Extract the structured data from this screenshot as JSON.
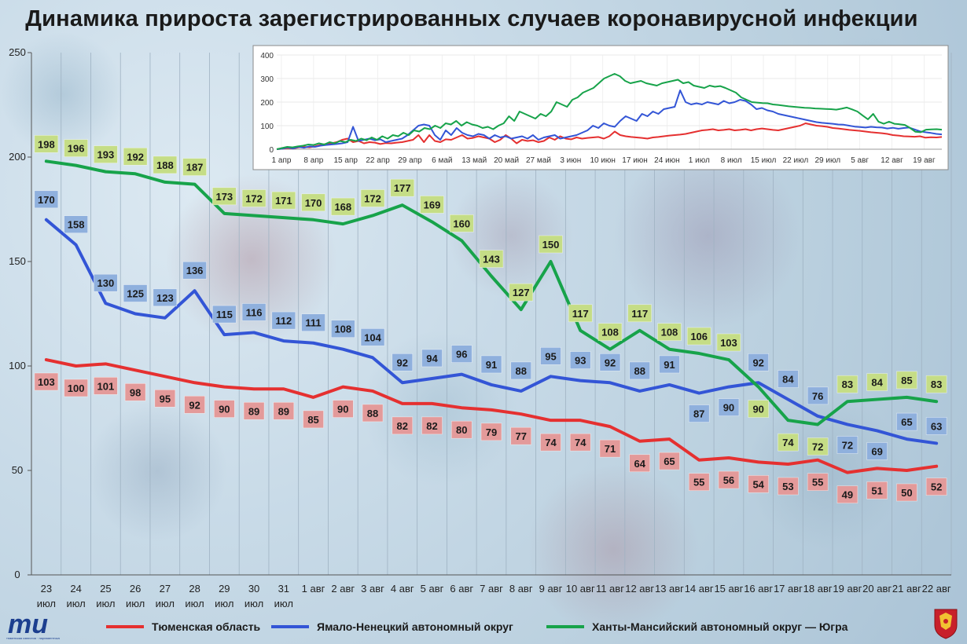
{
  "title": "Динамика прироста зарегистрированных случаев коронавирусной инфекции",
  "colors": {
    "tyumen": "#e53030",
    "yamal": "#3355d6",
    "hmao": "#17a34a"
  },
  "chart_data": [
    {
      "type": "line",
      "title": "Динамика прироста зарегистрированных случаев коронавирусной инфекции",
      "categories": [
        [
          "23",
          "июл"
        ],
        [
          "24",
          "июл"
        ],
        [
          "25",
          "июл"
        ],
        [
          "26",
          "июл"
        ],
        [
          "27",
          "июл"
        ],
        [
          "28",
          "июл"
        ],
        [
          "29",
          "июл"
        ],
        [
          "30",
          "июл"
        ],
        [
          "31",
          "июл"
        ],
        [
          "1 авг",
          ""
        ],
        [
          "2 авг",
          ""
        ],
        [
          "3 авг",
          ""
        ],
        [
          "4 авг",
          ""
        ],
        [
          "5 авг",
          ""
        ],
        [
          "6 авг",
          ""
        ],
        [
          "7 авг",
          ""
        ],
        [
          "8 авг",
          ""
        ],
        [
          "9 авг",
          ""
        ],
        [
          "10 авг",
          ""
        ],
        [
          "11 авг",
          ""
        ],
        [
          "12 авг",
          ""
        ],
        [
          "13 авг",
          ""
        ],
        [
          "14 авг",
          ""
        ],
        [
          "15 авг",
          ""
        ],
        [
          "16 авг",
          ""
        ],
        [
          "17 авг",
          ""
        ],
        [
          "18 авг",
          ""
        ],
        [
          "19 авг",
          ""
        ],
        [
          "20 авг",
          ""
        ],
        [
          "21 авг",
          ""
        ],
        [
          "22 авг",
          ""
        ]
      ],
      "yticks": [
        0,
        50,
        100,
        150,
        200,
        250
      ],
      "ylim": [
        0,
        250
      ],
      "series": [
        {
          "name": "Тюменская область",
          "key": "tyumen",
          "values": [
            103,
            100,
            101,
            98,
            95,
            92,
            90,
            89,
            89,
            85,
            90,
            88,
            82,
            82,
            80,
            79,
            77,
            74,
            74,
            71,
            64,
            65,
            55,
            56,
            54,
            53,
            55,
            49,
            51,
            50,
            52
          ]
        },
        {
          "name": "Ямало-Ненецкий автономный округ",
          "key": "yamal",
          "values": [
            170,
            158,
            130,
            125,
            123,
            136,
            115,
            116,
            112,
            111,
            108,
            104,
            92,
            94,
            96,
            91,
            88,
            95,
            93,
            92,
            88,
            91,
            87,
            90,
            92,
            84,
            76,
            72,
            69,
            65,
            63
          ]
        },
        {
          "name": "Ханты-Мансийский автономный округ — Югра",
          "key": "hmao",
          "values": [
            198,
            196,
            193,
            192,
            188,
            187,
            173,
            172,
            171,
            170,
            168,
            172,
            177,
            169,
            160,
            143,
            127,
            150,
            117,
            108,
            117,
            108,
            106,
            103,
            90,
            74,
            72,
            83,
            84,
            85,
            83
          ]
        }
      ]
    },
    {
      "type": "line",
      "xticks": [
        "1 апр",
        "8 апр",
        "15 апр",
        "22 апр",
        "29 апр",
        "6 май",
        "13 май",
        "20 май",
        "27 май",
        "3 июн",
        "10 июн",
        "17 июн",
        "24 июн",
        "1 июл",
        "8 июл",
        "15 июл",
        "22 июл",
        "29 июл",
        "5 авг",
        "12 авг",
        "19 авг"
      ],
      "yticks": [
        0,
        100,
        200,
        300,
        400
      ],
      "ylim": [
        0,
        400
      ],
      "series": [
        {
          "key": "tyumen",
          "values": [
            0,
            2,
            5,
            3,
            8,
            10,
            8,
            12,
            18,
            22,
            25,
            30,
            40,
            45,
            30,
            35,
            25,
            30,
            28,
            22,
            26,
            25,
            28,
            30,
            35,
            40,
            60,
            30,
            60,
            35,
            30,
            42,
            40,
            50,
            60,
            45,
            48,
            55,
            50,
            45,
            30,
            40,
            60,
            45,
            25,
            40,
            35,
            38,
            30,
            35,
            50,
            40,
            55,
            45,
            42,
            50,
            45,
            48,
            50,
            52,
            45,
            55,
            75,
            60,
            55,
            52,
            50,
            48,
            45,
            50,
            52,
            55,
            58,
            60,
            62,
            65,
            70,
            75,
            80,
            82,
            85,
            80,
            82,
            85,
            80,
            82,
            85,
            80,
            85,
            88,
            85,
            82,
            80,
            85,
            90,
            95,
            100,
            110,
            105,
            100,
            98,
            95,
            90,
            88,
            85,
            82,
            80,
            78,
            75,
            72,
            70,
            68,
            65,
            60,
            58,
            55,
            54,
            53,
            55,
            49,
            51,
            50,
            52
          ]
        },
        {
          "key": "yamal",
          "values": [
            0,
            2,
            8,
            3,
            10,
            6,
            12,
            10,
            15,
            18,
            20,
            22,
            25,
            30,
            95,
            35,
            40,
            45,
            38,
            42,
            30,
            35,
            40,
            45,
            60,
            80,
            100,
            105,
            100,
            60,
            40,
            80,
            60,
            90,
            70,
            60,
            55,
            65,
            60,
            45,
            60,
            50,
            55,
            45,
            50,
            55,
            45,
            60,
            40,
            50,
            55,
            60,
            45,
            50,
            55,
            60,
            70,
            80,
            100,
            90,
            110,
            100,
            95,
            120,
            140,
            130,
            120,
            150,
            140,
            160,
            150,
            170,
            175,
            180,
            250,
            200,
            190,
            195,
            190,
            200,
            195,
            190,
            205,
            195,
            200,
            210,
            205,
            190,
            170,
            175,
            165,
            160,
            150,
            145,
            140,
            135,
            130,
            125,
            120,
            115,
            112,
            110,
            108,
            105,
            104,
            100,
            96,
            94,
            92,
            95,
            93,
            92,
            88,
            91,
            87,
            90,
            92,
            84,
            76,
            72,
            69,
            65,
            63
          ]
        },
        {
          "key": "hmao",
          "values": [
            0,
            5,
            10,
            8,
            12,
            15,
            20,
            18,
            25,
            20,
            30,
            25,
            35,
            30,
            40,
            35,
            45,
            38,
            50,
            40,
            55,
            45,
            60,
            55,
            70,
            60,
            80,
            75,
            90,
            85,
            100,
            90,
            110,
            105,
            120,
            100,
            115,
            105,
            100,
            90,
            95,
            85,
            100,
            110,
            140,
            120,
            160,
            150,
            140,
            130,
            150,
            140,
            160,
            200,
            190,
            180,
            210,
            220,
            240,
            250,
            260,
            280,
            300,
            310,
            320,
            310,
            290,
            280,
            285,
            290,
            280,
            275,
            270,
            280,
            285,
            290,
            295,
            280,
            285,
            270,
            265,
            260,
            270,
            265,
            268,
            260,
            250,
            240,
            220,
            210,
            200,
            198,
            196,
            195,
            190,
            188,
            185,
            182,
            180,
            178,
            176,
            175,
            173,
            172,
            171,
            170,
            168,
            172,
            177,
            169,
            160,
            143,
            127,
            150,
            117,
            108,
            117,
            108,
            106,
            103,
            90,
            74,
            72,
            83,
            84,
            85,
            83
          ]
        }
      ]
    }
  ],
  "legend": [
    {
      "label": "Тюменская область",
      "color": "#e53030"
    },
    {
      "label": "Ямало-Ненецкий автономный округ",
      "color": "#3355d6"
    },
    {
      "label": "Ханты-Мансийский автономный округ — Югра",
      "color": "#17a34a"
    }
  ],
  "logo_text": "тюменская известия парламентская газета"
}
